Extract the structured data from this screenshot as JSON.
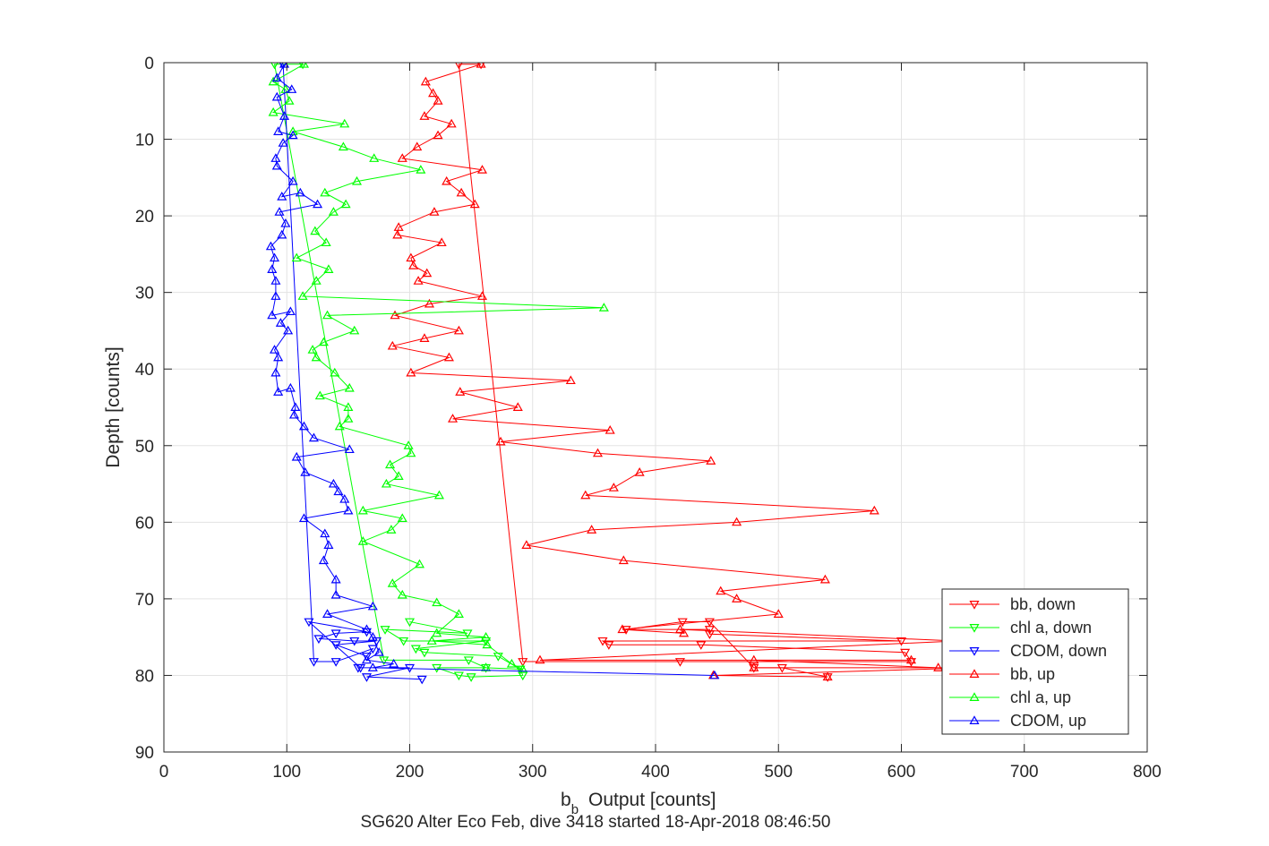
{
  "chart_data": {
    "type": "line",
    "title": "SG620 Alter Eco Feb, dive 3418 started 18-Apr-2018 08:46:50",
    "xlabel_main": "b",
    "xlabel_sub": "b",
    "xlabel_rest": "Output [counts]",
    "ylabel": "Depth [counts]",
    "xlim": [
      0,
      800
    ],
    "ylim": [
      0,
      90
    ],
    "y_reversed": true,
    "grid": true,
    "legend_position": "lower-right",
    "xticks": [
      0,
      100,
      200,
      300,
      400,
      500,
      600,
      700,
      800
    ],
    "yticks": [
      0,
      10,
      20,
      30,
      40,
      50,
      60,
      70,
      80,
      90
    ],
    "series": [
      {
        "name": "bb, down",
        "color": "#ff0000",
        "marker": "triangle-down",
        "points": [
          [
            258,
            0.2
          ],
          [
            240,
            0.2
          ],
          [
            292,
            78.2
          ],
          [
            420,
            78.2
          ],
          [
            608,
            78.2
          ],
          [
            603,
            77.0
          ],
          [
            437,
            76.0
          ],
          [
            362,
            76.0
          ],
          [
            357,
            75.5
          ],
          [
            600,
            75.5
          ],
          [
            444,
            74.6
          ],
          [
            444,
            74.0
          ],
          [
            376,
            74.0
          ],
          [
            422,
            73.0
          ],
          [
            444,
            73.0
          ],
          [
            480,
            79.0
          ],
          [
            503,
            79.0
          ],
          [
            540,
            80.2
          ]
        ]
      },
      {
        "name": "chl a, down",
        "color": "#00ff00",
        "marker": "triangle-down",
        "points": [
          [
            113,
            0.2
          ],
          [
            90,
            0.2
          ],
          [
            179,
            78.0
          ],
          [
            248,
            78.0
          ],
          [
            262,
            79.0
          ],
          [
            222,
            79.0
          ],
          [
            240,
            80.0
          ],
          [
            250,
            80.2
          ],
          [
            292,
            80.0
          ],
          [
            290,
            79.2
          ],
          [
            272,
            77.5
          ],
          [
            212,
            77.0
          ],
          [
            205,
            76.5
          ],
          [
            262,
            75.5
          ],
          [
            195,
            75.5
          ],
          [
            180,
            74.0
          ],
          [
            247,
            74.5
          ],
          [
            200,
            73.0
          ]
        ]
      },
      {
        "name": "CDOM, down",
        "color": "#0000ff",
        "marker": "triangle-down",
        "points": [
          [
            97,
            0.2
          ],
          [
            97,
            0.2
          ],
          [
            122,
            78.2
          ],
          [
            140,
            78.2
          ],
          [
            170,
            76.5
          ],
          [
            165,
            77.5
          ],
          [
            140,
            76.0
          ],
          [
            173,
            75.5
          ],
          [
            155,
            75.5
          ],
          [
            126,
            75.2
          ],
          [
            140,
            74.5
          ],
          [
            165,
            74.3
          ],
          [
            118,
            73.0
          ],
          [
            160,
            79.0
          ],
          [
            158,
            79.0
          ],
          [
            200,
            79.0
          ],
          [
            165,
            80.2
          ],
          [
            210,
            80.5
          ]
        ]
      },
      {
        "name": "bb, up",
        "color": "#ff0000",
        "marker": "triangle-up",
        "points": [
          [
            540,
            80.2
          ],
          [
            447,
            80.0
          ],
          [
            660,
            79.0
          ],
          [
            480,
            79.0
          ],
          [
            630,
            79.0
          ],
          [
            480,
            78.0
          ],
          [
            608,
            78.0
          ],
          [
            306,
            78.0
          ],
          [
            645,
            75.5
          ],
          [
            420,
            74.0
          ],
          [
            423,
            74.5
          ],
          [
            373,
            74.0
          ],
          [
            500,
            72.0
          ],
          [
            466,
            70.0
          ],
          [
            453,
            69.0
          ],
          [
            538,
            67.5
          ],
          [
            374,
            65.0
          ],
          [
            295,
            63.0
          ],
          [
            348,
            61.0
          ],
          [
            466,
            60.0
          ],
          [
            578,
            58.5
          ],
          [
            343,
            56.5
          ],
          [
            366,
            55.5
          ],
          [
            387,
            53.5
          ],
          [
            445,
            52.0
          ],
          [
            353,
            51.0
          ],
          [
            274,
            49.5
          ],
          [
            363,
            48.0
          ],
          [
            235,
            46.5
          ],
          [
            288,
            45.0
          ],
          [
            241,
            43.0
          ],
          [
            331,
            41.5
          ],
          [
            201,
            40.5
          ],
          [
            232,
            38.5
          ],
          [
            186,
            37.0
          ],
          [
            212,
            36.0
          ],
          [
            240,
            35.0
          ],
          [
            188,
            33.0
          ],
          [
            216,
            31.5
          ],
          [
            259,
            30.5
          ],
          [
            207,
            28.5
          ],
          [
            214,
            27.5
          ],
          [
            203,
            26.5
          ],
          [
            201,
            25.5
          ],
          [
            226,
            23.5
          ],
          [
            190,
            22.5
          ],
          [
            191,
            21.5
          ],
          [
            220,
            19.5
          ],
          [
            253,
            18.5
          ],
          [
            242,
            17.0
          ],
          [
            230,
            15.5
          ],
          [
            259,
            14.0
          ],
          [
            194,
            12.5
          ],
          [
            206,
            11.0
          ],
          [
            223,
            9.5
          ],
          [
            234,
            8.0
          ],
          [
            212,
            7.0
          ],
          [
            223,
            5.0
          ],
          [
            219,
            4.0
          ],
          [
            213,
            2.5
          ],
          [
            258,
            0.2
          ]
        ]
      },
      {
        "name": "chl a, up",
        "color": "#00ff00",
        "marker": "triangle-up",
        "points": [
          [
            262,
            79.0
          ],
          [
            292,
            79.2
          ],
          [
            283,
            78.5
          ],
          [
            263,
            76.0
          ],
          [
            218,
            75.5
          ],
          [
            262,
            75.0
          ],
          [
            222,
            74.5
          ],
          [
            240,
            72.0
          ],
          [
            222,
            70.5
          ],
          [
            194,
            69.5
          ],
          [
            186,
            68.0
          ],
          [
            208,
            65.5
          ],
          [
            162,
            62.5
          ],
          [
            185,
            61.0
          ],
          [
            194,
            59.5
          ],
          [
            162,
            58.5
          ],
          [
            224,
            56.5
          ],
          [
            181,
            55.0
          ],
          [
            191,
            54.0
          ],
          [
            184,
            52.5
          ],
          [
            201,
            51.0
          ],
          [
            199,
            50.0
          ],
          [
            143,
            47.5
          ],
          [
            150,
            46.5
          ],
          [
            150,
            45.0
          ],
          [
            127,
            43.5
          ],
          [
            151,
            42.5
          ],
          [
            139,
            40.5
          ],
          [
            124,
            38.5
          ],
          [
            121,
            37.5
          ],
          [
            130,
            36.5
          ],
          [
            155,
            35.0
          ],
          [
            133,
            33.0
          ],
          [
            358,
            32.0
          ],
          [
            113,
            30.5
          ],
          [
            124,
            28.5
          ],
          [
            134,
            27.0
          ],
          [
            108,
            25.5
          ],
          [
            132,
            23.5
          ],
          [
            123,
            22.0
          ],
          [
            138,
            19.5
          ],
          [
            148,
            18.5
          ],
          [
            131,
            17.0
          ],
          [
            157,
            15.5
          ],
          [
            209,
            14.0
          ],
          [
            171,
            12.5
          ],
          [
            146,
            11.0
          ],
          [
            105,
            9.0
          ],
          [
            147,
            8.0
          ],
          [
            89,
            6.5
          ],
          [
            102,
            5.0
          ],
          [
            99,
            3.5
          ],
          [
            89,
            2.5
          ],
          [
            114,
            0.2
          ]
        ]
      },
      {
        "name": "CDOM, up",
        "color": "#0000ff",
        "marker": "triangle-up",
        "points": [
          [
            448,
            80.0
          ],
          [
            170,
            79.0
          ],
          [
            187,
            78.5
          ],
          [
            165,
            78.0
          ],
          [
            175,
            77.0
          ],
          [
            170,
            75.0
          ],
          [
            165,
            74.0
          ],
          [
            133,
            72.0
          ],
          [
            170,
            71.0
          ],
          [
            140,
            69.5
          ],
          [
            140,
            67.5
          ],
          [
            130,
            65.0
          ],
          [
            134,
            63.0
          ],
          [
            131,
            61.5
          ],
          [
            114,
            59.5
          ],
          [
            150,
            58.5
          ],
          [
            147,
            57.0
          ],
          [
            142,
            56.0
          ],
          [
            138,
            55.0
          ],
          [
            115,
            53.5
          ],
          [
            108,
            51.5
          ],
          [
            151,
            50.5
          ],
          [
            122,
            49.0
          ],
          [
            114,
            47.5
          ],
          [
            106,
            46.0
          ],
          [
            107,
            45.0
          ],
          [
            103,
            42.5
          ],
          [
            93,
            43.0
          ],
          [
            91,
            40.5
          ],
          [
            93,
            38.5
          ],
          [
            90,
            37.5
          ],
          [
            101,
            35.0
          ],
          [
            95,
            34.0
          ],
          [
            103,
            32.5
          ],
          [
            88,
            33.0
          ],
          [
            91,
            30.5
          ],
          [
            91,
            28.5
          ],
          [
            88,
            27.0
          ],
          [
            90,
            25.5
          ],
          [
            87,
            24.0
          ],
          [
            96,
            22.5
          ],
          [
            99,
            21.0
          ],
          [
            94,
            19.5
          ],
          [
            125,
            18.5
          ],
          [
            111,
            17.0
          ],
          [
            96,
            17.5
          ],
          [
            105,
            15.5
          ],
          [
            92,
            13.5
          ],
          [
            91,
            12.5
          ],
          [
            97,
            10.5
          ],
          [
            105,
            9.5
          ],
          [
            93,
            9.0
          ],
          [
            98,
            7.0
          ],
          [
            92,
            4.5
          ],
          [
            104,
            3.5
          ],
          [
            92,
            2.0
          ],
          [
            98,
            0.2
          ]
        ]
      }
    ]
  }
}
